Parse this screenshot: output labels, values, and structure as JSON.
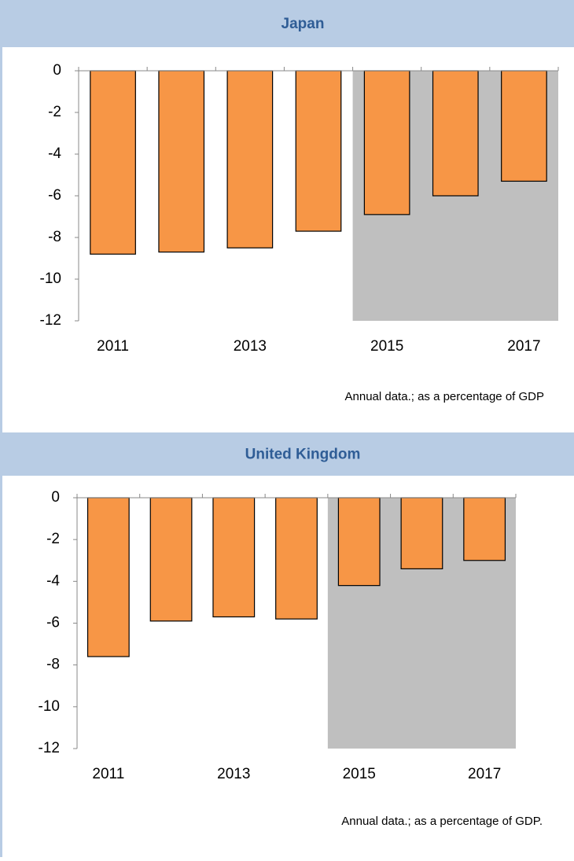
{
  "chart_data": [
    {
      "type": "bar",
      "title": "Japan",
      "note": "Annual data.; as a percentage of GDP",
      "categories": [
        "2011",
        null,
        "2013",
        null,
        "2015",
        null,
        "2017"
      ],
      "values": [
        -8.8,
        -8.7,
        -8.5,
        -7.7,
        -6.9,
        -6.0,
        -5.3
      ],
      "color": "#f79646",
      "shade_from": 4,
      "shade_color": "#bfbfbf",
      "ylim": [
        -12,
        0
      ],
      "yticks": [
        0,
        -2,
        -4,
        -6,
        -8,
        -10,
        -12
      ]
    },
    {
      "type": "bar",
      "title": "United Kingdom",
      "note": "Annual data.; as a percentage of GDP.",
      "categories": [
        "2011",
        null,
        "2013",
        null,
        "2015",
        null,
        "2017"
      ],
      "values": [
        -7.6,
        -5.9,
        -5.7,
        -5.8,
        -4.2,
        -3.4,
        -3.0
      ],
      "color": "#f79646",
      "shade_from": 4,
      "shade_color": "#bfbfbf",
      "ylim": [
        -12,
        0
      ],
      "yticks": [
        0,
        -2,
        -4,
        -6,
        -8,
        -10,
        -12
      ]
    }
  ]
}
